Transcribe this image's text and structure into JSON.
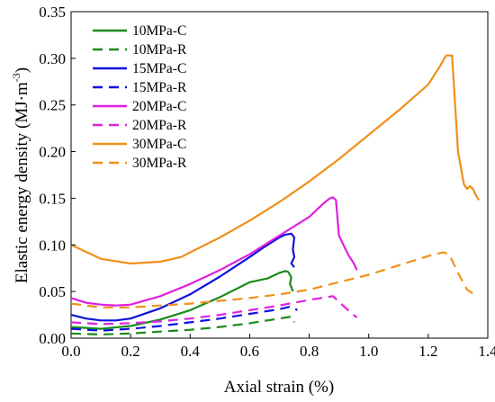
{
  "chart_data": {
    "type": "line",
    "xlabel": "Axial strain (%)",
    "ylabel": "Elastic energy density (MJ·m",
    "ylabel_sup": "-3",
    "ylabel_close": ")",
    "xlim": [
      0.0,
      1.4
    ],
    "ylim": [
      0.0,
      0.35
    ],
    "xticks": [
      "0.0",
      "0.2",
      "0.4",
      "0.6",
      "0.8",
      "1.0",
      "1.2",
      "1.4"
    ],
    "yticks": [
      "0.00",
      "0.05",
      "0.10",
      "0.15",
      "0.20",
      "0.25",
      "0.30",
      "0.35"
    ],
    "grid": false,
    "legend_position": "top-left",
    "series": [
      {
        "name": "10MPa-C",
        "color": "#1a8a1a",
        "dash": "solid",
        "x": [
          0.0,
          0.1,
          0.2,
          0.3,
          0.4,
          0.5,
          0.55,
          0.6,
          0.63,
          0.66,
          0.7,
          0.72,
          0.73,
          0.74,
          0.735,
          0.74,
          0.745
        ],
        "y": [
          0.012,
          0.01,
          0.013,
          0.02,
          0.03,
          0.044,
          0.052,
          0.06,
          0.062,
          0.064,
          0.07,
          0.072,
          0.071,
          0.065,
          0.058,
          0.055,
          0.05
        ]
      },
      {
        "name": "10MPa-R",
        "color": "#1a8a1a",
        "dash": "dashed",
        "x": [
          0.0,
          0.1,
          0.2,
          0.3,
          0.4,
          0.5,
          0.6,
          0.7,
          0.74,
          0.75
        ],
        "y": [
          0.005,
          0.004,
          0.005,
          0.007,
          0.009,
          0.012,
          0.016,
          0.021,
          0.023,
          0.017
        ]
      },
      {
        "name": "15MPa-C",
        "color": "#1010e0",
        "dash": "solid",
        "x": [
          0.0,
          0.05,
          0.1,
          0.15,
          0.2,
          0.3,
          0.4,
          0.5,
          0.6,
          0.65,
          0.7,
          0.72,
          0.74,
          0.75,
          0.745,
          0.75,
          0.74,
          0.75
        ],
        "y": [
          0.025,
          0.021,
          0.019,
          0.019,
          0.021,
          0.032,
          0.047,
          0.066,
          0.087,
          0.098,
          0.108,
          0.111,
          0.112,
          0.108,
          0.095,
          0.087,
          0.08,
          0.076
        ]
      },
      {
        "name": "15MPa-R",
        "color": "#1010e0",
        "dash": "dashed",
        "x": [
          0.0,
          0.1,
          0.2,
          0.3,
          0.4,
          0.5,
          0.6,
          0.7,
          0.74,
          0.76
        ],
        "y": [
          0.01,
          0.008,
          0.01,
          0.013,
          0.017,
          0.021,
          0.026,
          0.031,
          0.034,
          0.03
        ]
      },
      {
        "name": "20MPa-C",
        "color": "#e020e0",
        "dash": "solid",
        "x": [
          0.0,
          0.05,
          0.1,
          0.15,
          0.2,
          0.3,
          0.4,
          0.5,
          0.6,
          0.7,
          0.8,
          0.85,
          0.87,
          0.88,
          0.89,
          0.9,
          0.93,
          0.95,
          0.96
        ],
        "y": [
          0.043,
          0.038,
          0.036,
          0.035,
          0.036,
          0.045,
          0.058,
          0.073,
          0.09,
          0.11,
          0.13,
          0.145,
          0.15,
          0.151,
          0.148,
          0.11,
          0.09,
          0.08,
          0.073
        ]
      },
      {
        "name": "20MPa-R",
        "color": "#e020e0",
        "dash": "dashed",
        "x": [
          0.0,
          0.1,
          0.2,
          0.3,
          0.4,
          0.5,
          0.6,
          0.7,
          0.8,
          0.88,
          0.92,
          0.96
        ],
        "y": [
          0.017,
          0.015,
          0.016,
          0.018,
          0.021,
          0.025,
          0.03,
          0.035,
          0.041,
          0.045,
          0.033,
          0.022
        ]
      },
      {
        "name": "30MPa-C",
        "color": "#f0901a",
        "dash": "solid",
        "x": [
          0.0,
          0.1,
          0.2,
          0.3,
          0.37,
          0.4,
          0.5,
          0.6,
          0.7,
          0.8,
          0.9,
          1.0,
          1.1,
          1.2,
          1.24,
          1.26,
          1.28,
          1.3,
          1.32,
          1.33,
          1.34,
          1.35,
          1.36,
          1.37
        ],
        "y": [
          0.1,
          0.085,
          0.08,
          0.082,
          0.087,
          0.092,
          0.108,
          0.126,
          0.146,
          0.168,
          0.192,
          0.218,
          0.244,
          0.272,
          0.292,
          0.303,
          0.303,
          0.2,
          0.165,
          0.16,
          0.163,
          0.16,
          0.153,
          0.148
        ]
      },
      {
        "name": "30MPa-R",
        "color": "#f0901a",
        "dash": "dashed",
        "x": [
          0.0,
          0.1,
          0.2,
          0.3,
          0.4,
          0.5,
          0.6,
          0.7,
          0.8,
          0.9,
          1.0,
          1.1,
          1.2,
          1.25,
          1.27,
          1.3,
          1.33,
          1.35
        ],
        "y": [
          0.037,
          0.033,
          0.033,
          0.035,
          0.037,
          0.04,
          0.043,
          0.047,
          0.052,
          0.06,
          0.068,
          0.078,
          0.088,
          0.092,
          0.09,
          0.07,
          0.052,
          0.048
        ]
      }
    ]
  }
}
